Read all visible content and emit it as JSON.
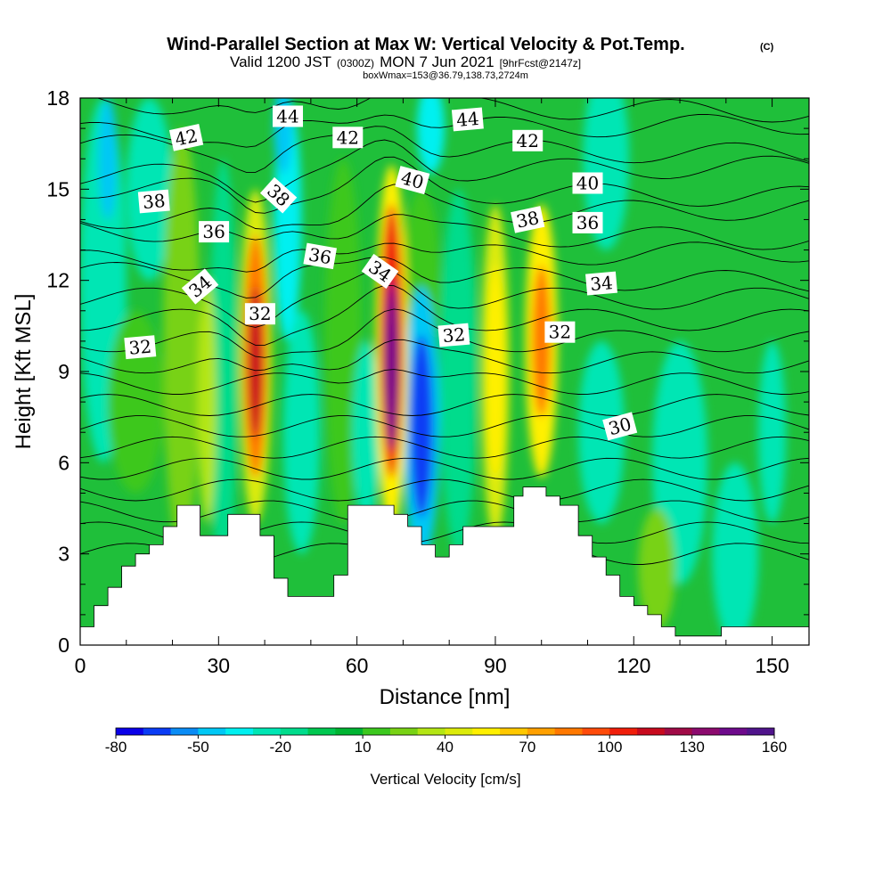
{
  "title": "Wind-Parallel Section at Max W: Vertical Velocity & Pot.Temp.",
  "title_mark": "(C)",
  "subtitle_parts": [
    "Valid 1200 JST",
    "(0300Z)",
    "MON 7 Jun 2021",
    "[9hrFcst@2147z]"
  ],
  "box_note": "boxWmax=153@36.79,138.73,2724m",
  "colorbar": {
    "title": "Vertical Velocity [cm/s]",
    "labels": [
      "-80",
      "-50",
      "-20",
      "10",
      "40",
      "70",
      "100",
      "130",
      "160"
    ],
    "colors": [
      "#0a00e8",
      "#0a3cf5",
      "#0a8cf5",
      "#00c8f5",
      "#00f0f0",
      "#00e6b4",
      "#00dc8c",
      "#00c850",
      "#00b432",
      "#3cc81e",
      "#78d214",
      "#b4e614",
      "#dceb0a",
      "#fff000",
      "#ffc800",
      "#ffa000",
      "#ff7800",
      "#ff4b0a",
      "#f01e0a",
      "#c80a1e",
      "#a00a46",
      "#8c0a6e",
      "#6e0a8c",
      "#50148c"
    ]
  },
  "chart_data": {
    "type": "heatmap",
    "xlabel": "Distance [nm]",
    "ylabel": "Height [Kft MSL]",
    "xlim": [
      0,
      158
    ],
    "ylim": [
      0,
      18
    ],
    "x_ticks": [
      "0",
      "30",
      "60",
      "90",
      "120",
      "150"
    ],
    "y_ticks": [
      "0",
      "3",
      "6",
      "9",
      "12",
      "15",
      "18"
    ],
    "field": "vertical velocity [cm/s]",
    "updraft_cores": [
      {
        "x": 38,
        "z_center": 9.5,
        "peak": 110
      },
      {
        "x": 67.5,
        "z_center": 9.8,
        "peak": 153
      },
      {
        "x": 90,
        "z_center": 9,
        "peak": 55
      },
      {
        "x": 100,
        "z_center": 10,
        "peak": 80
      }
    ],
    "downdraft_cores": [
      {
        "x": 74,
        "z_center": 7.2,
        "peak": -70
      },
      {
        "x": 7,
        "z_center": 16.5,
        "peak": -30
      }
    ],
    "terrain_kft": [
      [
        0,
        0.6
      ],
      [
        3,
        1.3
      ],
      [
        6,
        1.9
      ],
      [
        9,
        2.6
      ],
      [
        12,
        3.0
      ],
      [
        15,
        3.3
      ],
      [
        18,
        3.9
      ],
      [
        21,
        4.6
      ],
      [
        26,
        3.6
      ],
      [
        32,
        4.3
      ],
      [
        39,
        3.6
      ],
      [
        42,
        2.2
      ],
      [
        45,
        1.6
      ],
      [
        52,
        1.6
      ],
      [
        55,
        2.3
      ],
      [
        58,
        4.6
      ],
      [
        68,
        4.3
      ],
      [
        71,
        3.9
      ],
      [
        74,
        3.3
      ],
      [
        77,
        2.9
      ],
      [
        80,
        3.3
      ],
      [
        83,
        3.9
      ],
      [
        94,
        4.9
      ],
      [
        96,
        5.2
      ],
      [
        101,
        4.9
      ],
      [
        104,
        4.6
      ],
      [
        108,
        3.6
      ],
      [
        111,
        2.9
      ],
      [
        114,
        2.3
      ],
      [
        117,
        1.6
      ],
      [
        120,
        1.3
      ],
      [
        123,
        1.0
      ],
      [
        126,
        0.6
      ],
      [
        129,
        0.3
      ],
      [
        136,
        0.3
      ],
      [
        139,
        0.6
      ],
      [
        158,
        0.6
      ]
    ],
    "contours": {
      "variable": "potential temperature",
      "labels": [
        {
          "text": "42",
          "x": 23,
          "y": 16.7,
          "rot": -12
        },
        {
          "text": "44",
          "x": 45,
          "y": 17.4,
          "rot": 0
        },
        {
          "text": "42",
          "x": 58,
          "y": 16.7,
          "rot": 0
        },
        {
          "text": "44",
          "x": 84,
          "y": 17.3,
          "rot": -5
        },
        {
          "text": "42",
          "x": 97,
          "y": 16.6,
          "rot": 0
        },
        {
          "text": "38",
          "x": 16,
          "y": 14.6,
          "rot": -5
        },
        {
          "text": "38",
          "x": 43,
          "y": 14.8,
          "rot": 42
        },
        {
          "text": "40",
          "x": 72,
          "y": 15.3,
          "rot": 15
        },
        {
          "text": "40",
          "x": 110,
          "y": 15.2,
          "rot": 0
        },
        {
          "text": "36",
          "x": 29,
          "y": 13.6,
          "rot": 0
        },
        {
          "text": "38",
          "x": 97,
          "y": 14.0,
          "rot": -12
        },
        {
          "text": "36",
          "x": 110,
          "y": 13.9,
          "rot": 0
        },
        {
          "text": "36",
          "x": 52,
          "y": 12.8,
          "rot": 10
        },
        {
          "text": "34",
          "x": 65,
          "y": 12.3,
          "rot": 35
        },
        {
          "text": "34",
          "x": 26,
          "y": 11.8,
          "rot": -40
        },
        {
          "text": "34",
          "x": 113,
          "y": 11.9,
          "rot": -5
        },
        {
          "text": "32",
          "x": 39,
          "y": 10.9,
          "rot": 0
        },
        {
          "text": "32",
          "x": 13,
          "y": 9.8,
          "rot": -5
        },
        {
          "text": "32",
          "x": 81,
          "y": 10.2,
          "rot": -5
        },
        {
          "text": "32",
          "x": 104,
          "y": 10.3,
          "rot": 0
        },
        {
          "text": "30",
          "x": 117,
          "y": 7.2,
          "rot": -15
        }
      ]
    }
  }
}
